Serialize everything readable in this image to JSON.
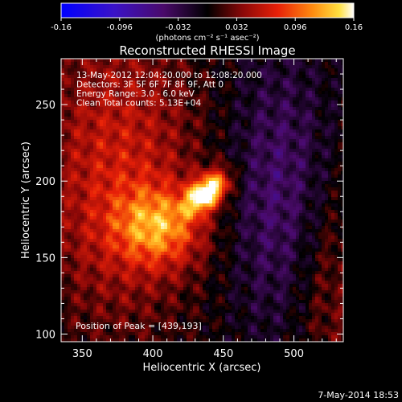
{
  "colorbar": {
    "ticks": [
      "-0.16",
      "-0.096",
      "-0.032",
      "0.032",
      "0.096",
      "0.16"
    ],
    "tick_values": [
      -0.16,
      -0.096,
      -0.032,
      0.032,
      0.096,
      0.16
    ],
    "range": [
      -0.16,
      0.16
    ],
    "unit_label": "(photons cm⁻² s⁻¹ asec⁻²)"
  },
  "title": "Reconstructed RHESSI Image",
  "info_lines": [
    "13-May-2012 12:04:20.000 to 12:08:20.000",
    "Detectors: 3F 5F 6F 7F 8F 9F, Att 0",
    "Energy Range: 3.0 - 6.0 keV",
    "Clean     Total counts: 5.13E+04"
  ],
  "peak_label": "Position of Peak = [439,193]",
  "footer_date": "7-May-2014 18:53",
  "chart_data": {
    "type": "heatmap",
    "title": "Reconstructed RHESSI Image",
    "xlabel": "Heliocentric X (arcsec)",
    "ylabel": "Heliocentric Y (arcsec)",
    "xlim": [
      335,
      535
    ],
    "ylim": [
      95,
      280
    ],
    "xticks": [
      350,
      400,
      450,
      500
    ],
    "yticks": [
      100,
      150,
      200,
      250
    ],
    "peak": {
      "x": 439,
      "y": 193
    },
    "colorscale": "rhessi (blue-purple-black-red-orange-yellow-white)",
    "value_range": [
      -0.16,
      0.16
    ]
  }
}
